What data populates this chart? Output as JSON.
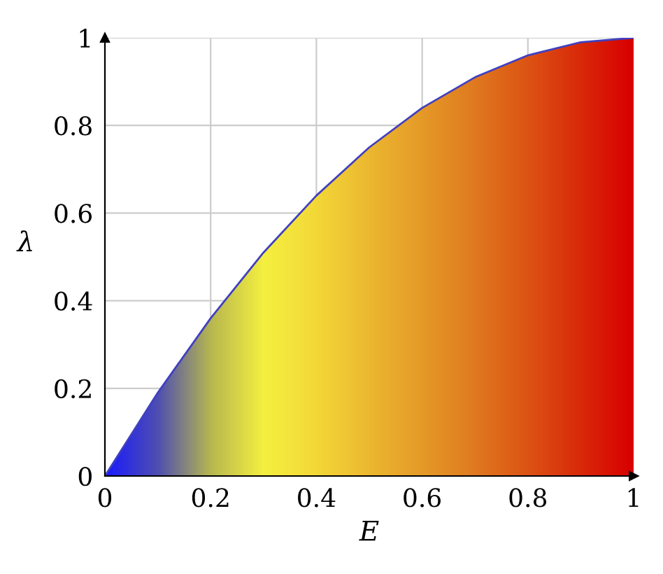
{
  "chart_data": {
    "type": "area",
    "xlabel": "E",
    "ylabel": "λ",
    "x": [
      0,
      0.1,
      0.2,
      0.3,
      0.4,
      0.5,
      0.6,
      0.7,
      0.8,
      0.9,
      1
    ],
    "series": [
      {
        "color": "#4040c0",
        "values": [
          0,
          0.19,
          0.36,
          0.51,
          0.64,
          0.75,
          0.84,
          0.91,
          0.96,
          0.99,
          1
        ],
        "colors": [
          "#1a1aff",
          "#5050b0",
          "#b8b850",
          "#f5f040",
          "#f3d838",
          "#ecb830",
          "#e59a28",
          "#e07a20",
          "#dc5414",
          "#d92a0a",
          "#d80000"
        ]
      }
    ],
    "xlim": [
      0,
      1
    ],
    "ylim": [
      0,
      1
    ],
    "xticks": [
      0,
      0.2,
      0.4,
      0.6,
      0.8,
      1
    ],
    "yticks": [
      0,
      0.2,
      0.4,
      0.6,
      0.8,
      1
    ],
    "grid": true
  }
}
